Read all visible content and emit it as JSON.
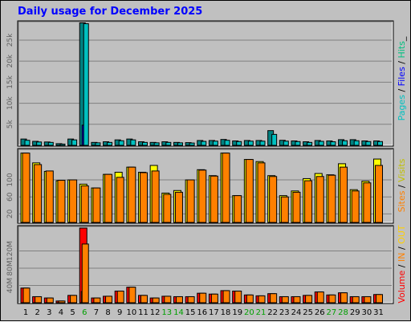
{
  "title": "Daily usage for December 2025",
  "chart_data": [
    {
      "type": "bar",
      "panel": "hits-files-pages",
      "categories": [
        "1",
        "2",
        "3",
        "4",
        "5",
        "6",
        "7",
        "8",
        "9",
        "10",
        "11",
        "12",
        "13",
        "14",
        "15",
        "16",
        "17",
        "18",
        "19",
        "20",
        "21",
        "22",
        "23",
        "24",
        "25",
        "26",
        "27",
        "28",
        "29",
        "30",
        "31"
      ],
      "ylim": [
        0,
        29000
      ],
      "yticks": [
        "5k",
        "10k",
        "15k",
        "20k",
        "25k"
      ],
      "ytick_values": [
        5000,
        10000,
        15000,
        20000,
        25000
      ],
      "series": [
        {
          "name": "Hits",
          "color": "#00c0c0",
          "values": [
            1500,
            950,
            800,
            400,
            1500,
            29100,
            700,
            850,
            1300,
            1500,
            850,
            700,
            850,
            700,
            650,
            1150,
            1150,
            1400,
            1050,
            1150,
            1150,
            3500,
            1200,
            1050,
            850,
            1150,
            1050,
            1350,
            1350,
            1050,
            1050
          ]
        },
        {
          "name": "Files",
          "color": "#0000ff",
          "values": [
            0,
            0,
            0,
            0,
            0,
            4800,
            0,
            0,
            0,
            0,
            0,
            0,
            0,
            0,
            0,
            0,
            0,
            0,
            0,
            0,
            0,
            0,
            0,
            0,
            0,
            0,
            0,
            0,
            0,
            0,
            0
          ]
        },
        {
          "name": "Pages",
          "color": "#00c0c0",
          "values": [
            1200,
            800,
            700,
            300,
            1300,
            28900,
            600,
            700,
            1100,
            1300,
            700,
            600,
            700,
            600,
            550,
            950,
            1000,
            1200,
            900,
            1000,
            1000,
            2600,
            1000,
            900,
            700,
            950,
            850,
            1100,
            1100,
            900,
            900
          ]
        }
      ],
      "legend": [
        {
          "text": "Pages",
          "color": "#00c0c0"
        },
        {
          "text": " / ",
          "color": "#000000"
        },
        {
          "text": "Files",
          "color": "#0000ff"
        },
        {
          "text": " / ",
          "color": "#000000"
        },
        {
          "text": "Hits",
          "color": "#00c080"
        },
        {
          "text": "_",
          "color": "#000000"
        }
      ]
    },
    {
      "type": "bar",
      "panel": "visits-sites",
      "categories": [
        "1",
        "2",
        "3",
        "4",
        "5",
        "6",
        "7",
        "8",
        "9",
        "10",
        "11",
        "12",
        "13",
        "14",
        "15",
        "16",
        "17",
        "18",
        "19",
        "20",
        "21",
        "22",
        "23",
        "24",
        "25",
        "26",
        "27",
        "28",
        "29",
        "30",
        "31"
      ],
      "ylim": [
        0,
        168
      ],
      "yticks": [
        "20",
        "60",
        "100"
      ],
      "ytick_values": [
        20,
        60,
        100
      ],
      "series": [
        {
          "name": "Visits",
          "color": "#ffff00",
          "values": [
            163,
            140,
            120,
            98,
            100,
            90,
            81,
            113,
            118,
            130,
            118,
            134,
            69,
            75,
            100,
            124,
            110,
            163,
            63,
            148,
            143,
            110,
            63,
            74,
            103,
            115,
            112,
            138,
            77,
            97,
            149
          ]
        },
        {
          "name": "Sites",
          "color": "#ff8000",
          "values": [
            163,
            136,
            121,
            99,
            100,
            86,
            81,
            113,
            106,
            130,
            117,
            121,
            66,
            71,
            100,
            123,
            109,
            163,
            63,
            148,
            140,
            108,
            60,
            71,
            98,
            108,
            111,
            130,
            74,
            93,
            134
          ]
        }
      ],
      "legend": [
        {
          "text": "Sites",
          "color": "#ff8000"
        },
        {
          "text": " / ",
          "color": "#000000"
        },
        {
          "text": "Visits",
          "color": "#c0c000"
        }
      ]
    },
    {
      "type": "bar",
      "panel": "volume",
      "categories": [
        "1",
        "2",
        "3",
        "4",
        "5",
        "6",
        "7",
        "8",
        "9",
        "10",
        "11",
        "12",
        "13",
        "14",
        "15",
        "16",
        "17",
        "18",
        "19",
        "20",
        "21",
        "22",
        "23",
        "24",
        "25",
        "26",
        "27",
        "28",
        "29",
        "30",
        "31"
      ],
      "ylim": [
        0,
        173
      ],
      "yticks": [
        "40M",
        "80M",
        "120M"
      ],
      "ytick_values": [
        40,
        80,
        120
      ],
      "yunit": "M",
      "series": [
        {
          "name": "Volume",
          "color": "#ff0000",
          "values": [
            34,
            14,
            11,
            4,
            17,
            173,
            11,
            15,
            27,
            36,
            17,
            11,
            15,
            14,
            14,
            22,
            20,
            28,
            27,
            18,
            16,
            21,
            14,
            14,
            17,
            25,
            18,
            23,
            14,
            14,
            19
          ]
        },
        {
          "name": "KB In",
          "color": "#ff8000",
          "values": [
            0,
            0,
            0,
            0,
            0,
            26,
            0,
            0,
            0,
            0,
            0,
            0,
            0,
            0,
            0,
            0,
            0,
            0,
            0,
            0,
            0,
            0,
            0,
            0,
            0,
            0,
            0,
            0,
            0,
            0,
            0
          ]
        },
        {
          "name": "KB Out",
          "color": "#ff8000",
          "values": [
            34,
            14,
            11,
            4,
            17,
            136,
            11,
            15,
            27,
            36,
            17,
            11,
            15,
            14,
            14,
            22,
            20,
            28,
            27,
            18,
            16,
            21,
            14,
            14,
            17,
            25,
            18,
            23,
            14,
            14,
            19
          ]
        }
      ],
      "legend": [
        {
          "text": "Volume",
          "color": "#ff0000"
        },
        {
          "text": " / ",
          "color": "#000000"
        },
        {
          "text": "IN",
          "color": "#ff8000"
        },
        {
          "text": " / ",
          "color": "#000000"
        },
        {
          "text": "OUT",
          "color": "#ffd000"
        }
      ]
    }
  ],
  "days": {
    "labels": [
      "1",
      "2",
      "3",
      "4",
      "5",
      "6",
      "7",
      "8",
      "9",
      "10",
      "11",
      "12",
      "13",
      "14",
      "15",
      "16",
      "17",
      "18",
      "19",
      "20",
      "21",
      "22",
      "23",
      "24",
      "25",
      "26",
      "27",
      "28",
      "29",
      "30",
      "31"
    ],
    "weekend": [
      false,
      false,
      false,
      false,
      false,
      true,
      false,
      false,
      false,
      false,
      false,
      false,
      true,
      true,
      false,
      false,
      false,
      false,
      false,
      true,
      true,
      false,
      false,
      false,
      false,
      false,
      true,
      true,
      false,
      false,
      false
    ],
    "weekday_color": "#000000",
    "weekend_color": "#00a000"
  }
}
